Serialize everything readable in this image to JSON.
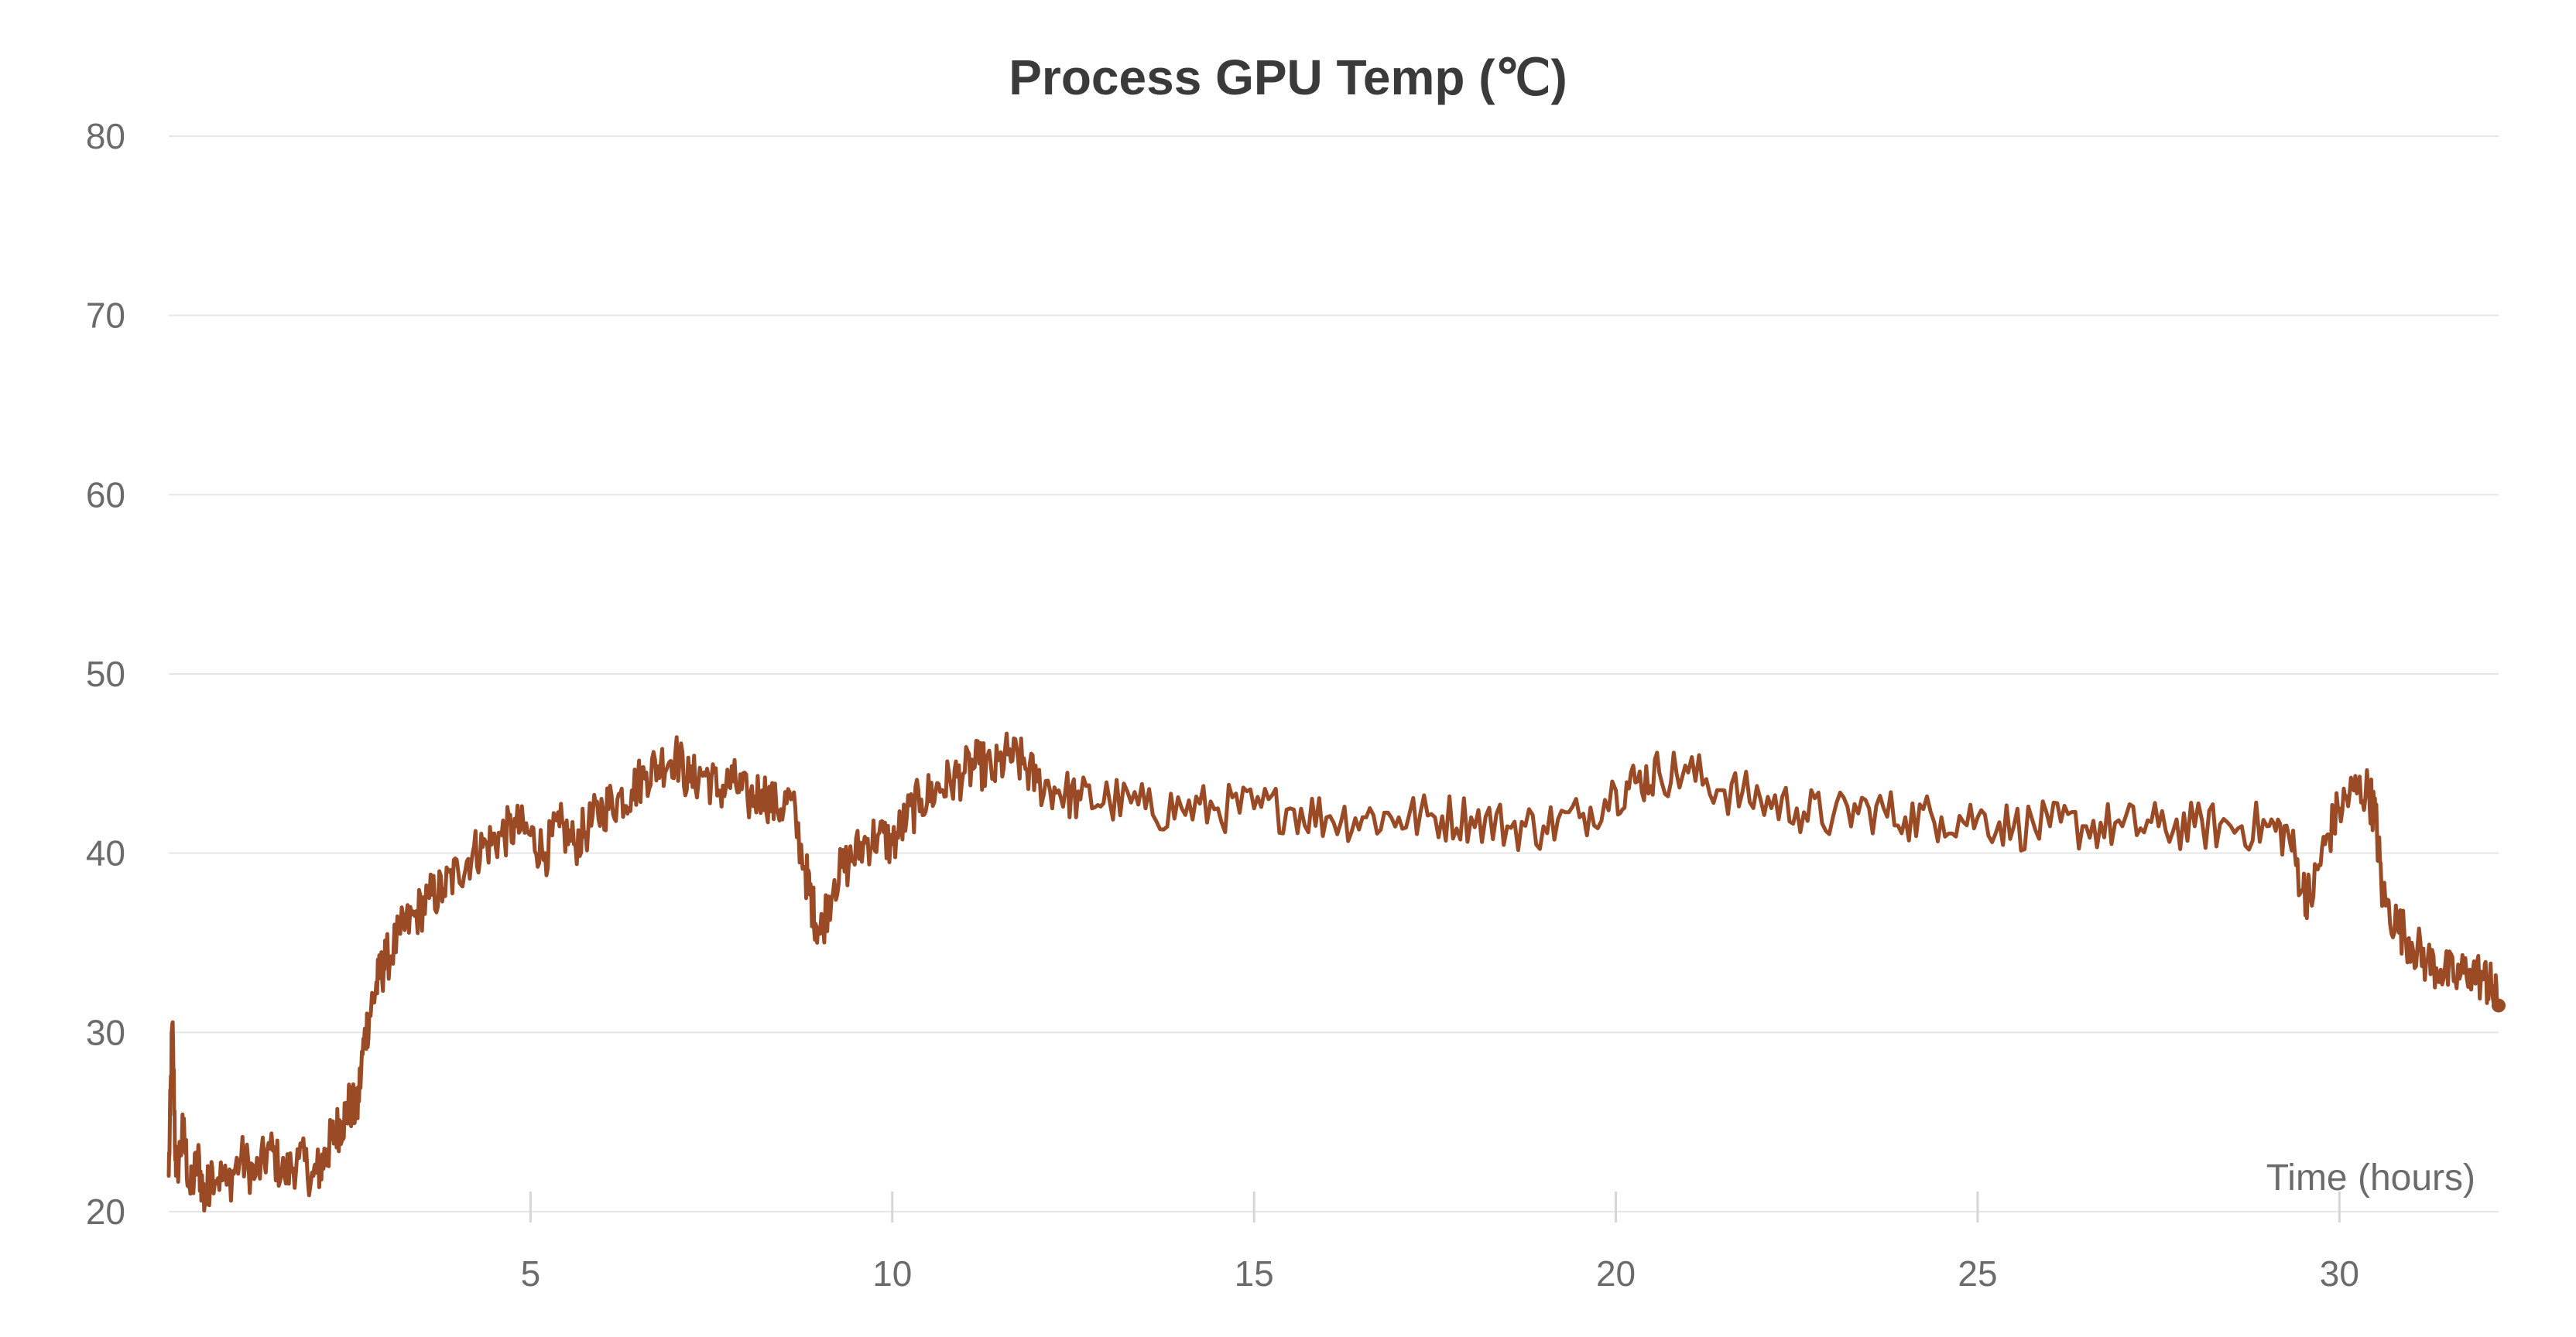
{
  "chart_data": {
    "type": "line",
    "title": "Process GPU Temp (℃)",
    "xlabel": "Time (hours)",
    "ylabel": "",
    "xlim": [
      0,
      32.2
    ],
    "ylim": [
      20,
      80
    ],
    "yticks": [
      20,
      30,
      40,
      50,
      60,
      70,
      80
    ],
    "xticks": [
      5,
      10,
      15,
      20,
      25,
      30
    ],
    "grid": true,
    "color": "#9a4a24",
    "series": [
      {
        "color": "#9a4a24",
        "x": [
          0,
          0.05,
          0.1,
          0.2,
          0.3,
          0.4,
          0.5,
          0.6,
          0.8,
          1.0,
          1.2,
          1.4,
          1.6,
          1.8,
          2.0,
          2.1,
          2.2,
          2.3,
          2.4,
          2.5,
          2.6,
          2.7,
          2.8,
          2.9,
          3.0,
          3.2,
          3.4,
          3.6,
          3.8,
          4.0,
          4.2,
          4.4,
          4.6,
          4.8,
          5.0,
          5.2,
          5.4,
          5.6,
          5.8,
          6.0,
          6.2,
          6.4,
          6.6,
          6.8,
          7.0,
          7.2,
          7.4,
          7.6,
          7.8,
          8.0,
          8.2,
          8.4,
          8.6,
          8.8,
          8.9,
          9.0,
          9.2,
          9.4,
          9.6,
          9.8,
          10.0,
          10.2,
          10.4,
          10.6,
          10.8,
          11.0,
          11.2,
          11.4,
          11.6,
          11.8,
          12.0,
          12.3,
          12.6,
          13.0,
          13.5,
          14.0,
          14.5,
          15.0,
          15.5,
          16.0,
          16.5,
          17.0,
          17.5,
          18.0,
          18.5,
          19.0,
          19.5,
          20.0,
          20.3,
          20.6,
          21.0,
          21.5,
          22.0,
          22.5,
          23.0,
          23.5,
          24.0,
          24.5,
          25.0,
          25.5,
          26.0,
          26.5,
          27.0,
          27.5,
          28.0,
          28.5,
          29.0,
          29.3,
          29.5,
          29.6,
          29.8,
          30.0,
          30.2,
          30.4,
          30.5,
          30.6,
          30.8,
          31.0,
          31.2,
          31.4,
          31.6,
          31.8,
          32.0,
          32.1,
          32.2
        ],
        "y": [
          22,
          30.5,
          22,
          24.5,
          21,
          23,
          20.5,
          22.5,
          21.5,
          23,
          22,
          23.5,
          22,
          23,
          22,
          22.5,
          23.5,
          24.5,
          25,
          26,
          25.5,
          29.5,
          31.5,
          33,
          34,
          35.5,
          36.5,
          37.5,
          38,
          39,
          40,
          40.5,
          41,
          41.5,
          41,
          40,
          41.5,
          40.5,
          41.5,
          42.5,
          43,
          43.5,
          44.5,
          45,
          45.5,
          44,
          44.5,
          43.5,
          44,
          43,
          43.5,
          42.5,
          43,
          39,
          37,
          35.5,
          38.5,
          39.5,
          40.5,
          41,
          40.5,
          42,
          43,
          43.5,
          44,
          44.5,
          45,
          44.5,
          45.5,
          45,
          44,
          43.5,
          43,
          43,
          42.5,
          42.5,
          42.5,
          42.5,
          42.5,
          42,
          42,
          42,
          42,
          42,
          41.5,
          41.5,
          42,
          43.5,
          44,
          44.5,
          44.5,
          43.5,
          43,
          42.5,
          42,
          42.5,
          42,
          42,
          42,
          41.5,
          41.5,
          41.5,
          41.5,
          41.5,
          41.5,
          41.5,
          41.5,
          41,
          38,
          37.5,
          40.5,
          42.5,
          43.5,
          43.5,
          42,
          37.5,
          36,
          35,
          34,
          33.5,
          33,
          33.5,
          33,
          32.5,
          31.5
        ]
      }
    ]
  }
}
